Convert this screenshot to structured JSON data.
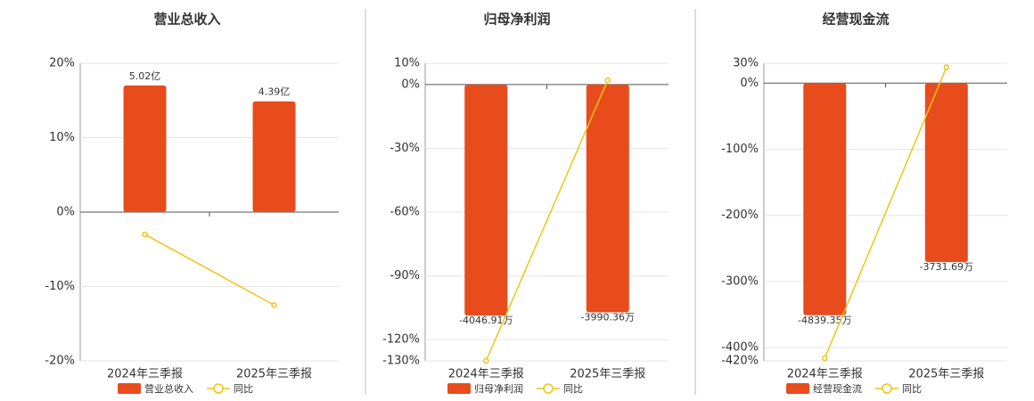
{
  "chart_data": [
    {
      "type": "bar-line",
      "title": "营业总收入",
      "categories": [
        "2024年三季报",
        "2025年三季报"
      ],
      "series": [
        {
          "name": "营业总收入",
          "type": "bar",
          "axis": "y2",
          "color": "#e84c1c",
          "values": [
            5.02,
            4.39
          ],
          "value_labels": [
            "5.02亿",
            "4.39亿"
          ]
        },
        {
          "name": "同比",
          "type": "line",
          "color": "#f0c419",
          "values": [
            -3.0,
            -12.5
          ]
        }
      ],
      "ylim": [
        -20,
        20
      ],
      "yticks": [
        {
          "value": -20,
          "label": "-20%"
        },
        {
          "value": -10,
          "label": "-10%"
        },
        {
          "value": 0,
          "label": "0%"
        },
        {
          "value": 10,
          "label": "10%"
        },
        {
          "value": 20,
          "label": "20%"
        }
      ],
      "y2lim": [
        -5.9,
        5.9
      ],
      "grid": true
    },
    {
      "type": "bar-line",
      "title": "归母净利润",
      "categories": [
        "2024年三季报",
        "2025年三季报"
      ],
      "series": [
        {
          "name": "归母净利润",
          "type": "bar",
          "axis": "y2",
          "color": "#e84c1c",
          "values": [
            -4046.91,
            -3990.36
          ],
          "value_labels": [
            "-4046.91万",
            "-3990.36万"
          ]
        },
        {
          "name": "同比",
          "type": "line",
          "color": "#f0c419",
          "values": [
            -130,
            2
          ]
        }
      ],
      "ylim": [
        -130,
        10
      ],
      "yticks": [
        {
          "value": -130,
          "label": "-130%"
        },
        {
          "value": -120,
          "label": "-120%"
        },
        {
          "value": -90,
          "label": "-90%"
        },
        {
          "value": -60,
          "label": "-60%"
        },
        {
          "value": -30,
          "label": "-30%"
        },
        {
          "value": 0,
          "label": "0%"
        },
        {
          "value": 10,
          "label": "10%"
        }
      ],
      "y2lim": [
        -4840,
        372
      ],
      "grid": true
    },
    {
      "type": "bar-line",
      "title": "经营现金流",
      "categories": [
        "2024年三季报",
        "2025年三季报"
      ],
      "series": [
        {
          "name": "经营现金流",
          "type": "bar",
          "axis": "y2",
          "color": "#e84c1c",
          "values": [
            -4839.35,
            -3731.69
          ],
          "value_labels": [
            "-4839.35万",
            "-3731.69万"
          ]
        },
        {
          "name": "同比",
          "type": "line",
          "color": "#f0c419",
          "values": [
            -416,
            24
          ]
        }
      ],
      "ylim": [
        -420,
        30
      ],
      "yticks": [
        {
          "value": -420,
          "label": "-420%"
        },
        {
          "value": -400,
          "label": "-400%"
        },
        {
          "value": -300,
          "label": "-300%"
        },
        {
          "value": -200,
          "label": "-200%"
        },
        {
          "value": -100,
          "label": "-100%"
        },
        {
          "value": 0,
          "label": "0%"
        },
        {
          "value": 30,
          "label": "30%"
        }
      ],
      "y2lim": [
        -5790,
        410
      ],
      "grid": true
    }
  ]
}
